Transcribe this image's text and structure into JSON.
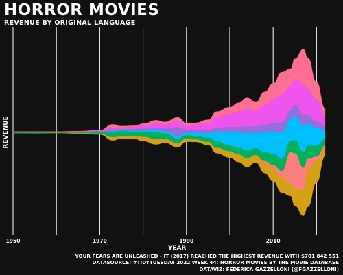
{
  "header": {
    "title": "HORROR MOVIES",
    "subtitle": "REVENUE BY ORIGINAL LANGUAGE"
  },
  "caption": {
    "line1": "YOUR FEARS ARE UNLEASHED - IT (2017) REACHED THE HIGHEST REVENUE WITH $701 842 551",
    "line2": "DATASOURCE: #TIDYTUESDAY 2022 WEEK 44: HORROR MOVIES BY THE MOVIE DATABASE",
    "line3": "DATAVIZ: FEDERICA GAZZELLONI (@FGAZZELLONI)"
  },
  "colors": {
    "background": "#111111",
    "grid": "#ffffff",
    "text": "#ffffff"
  },
  "chart_data": {
    "type": "area",
    "style": "streamgraph",
    "xlabel": "YEAR",
    "ylabel": "REVENUE",
    "xlim": [
      1950,
      2022
    ],
    "x_ticks": [
      1950,
      1970,
      1990,
      2010
    ],
    "x_tick_labels": [
      "1950",
      "1970",
      "1990",
      "2010"
    ],
    "gridlines_x": [
      1950,
      1960,
      1970,
      1980,
      1990,
      2000,
      2010,
      2020
    ],
    "legend": "none",
    "x": [
      1950,
      1955,
      1960,
      1965,
      1970,
      1973,
      1975,
      1978,
      1980,
      1983,
      1985,
      1988,
      1990,
      1992,
      1995,
      1997,
      2000,
      2002,
      2004,
      2006,
      2008,
      2010,
      2012,
      2014,
      2015,
      2017,
      2018,
      2020,
      2022
    ],
    "series": [
      {
        "color": "#d4a017",
        "values": [
          0.1,
          0.1,
          0.2,
          0.3,
          0.5,
          1.5,
          1.0,
          1.5,
          2.0,
          2.5,
          1.8,
          2.0,
          1.5,
          1.2,
          1.5,
          2.5,
          3.0,
          3.5,
          4.0,
          3.5,
          5.0,
          6.0,
          7.0,
          6.0,
          8.0,
          12.0,
          18.0,
          10.0,
          4.0
        ]
      },
      {
        "color": "#ff7f7f",
        "values": [
          0,
          0,
          0,
          0,
          0,
          0,
          0,
          0,
          0,
          0,
          0,
          0,
          0,
          0,
          0,
          0,
          0,
          0,
          0,
          0,
          0.5,
          1.5,
          3.0,
          14.0,
          16.0,
          10.0,
          4.0,
          2.0,
          1.0
        ]
      },
      {
        "color": "#00b159",
        "values": [
          0.4,
          0.5,
          0.3,
          0.4,
          0.6,
          2.0,
          2.5,
          1.8,
          2.0,
          3.0,
          2.5,
          2.0,
          1.5,
          1.5,
          2.0,
          3.0,
          2.5,
          3.0,
          3.5,
          3.0,
          4.0,
          5.0,
          5.5,
          5.0,
          6.0,
          7.0,
          6.0,
          5.0,
          3.0
        ]
      },
      {
        "color": "#00bfff",
        "values": [
          0.1,
          0.1,
          0.1,
          0.2,
          0.3,
          0.8,
          0.5,
          0.6,
          0.8,
          1.0,
          1.0,
          1.2,
          1.0,
          1.5,
          2.0,
          4.0,
          6.0,
          7.0,
          8.0,
          7.0,
          9.0,
          10.0,
          12.0,
          10.0,
          11.0,
          12.0,
          10.0,
          8.0,
          4.0
        ]
      },
      {
        "color": "#9370db",
        "values": [
          0,
          0,
          0,
          0,
          0.2,
          0.5,
          0.4,
          0.6,
          0.8,
          1.0,
          1.2,
          4.0,
          1.5,
          1.0,
          1.5,
          2.0,
          2.5,
          2.5,
          3.0,
          3.0,
          3.5,
          4.0,
          4.5,
          4.0,
          5.0,
          5.0,
          4.0,
          3.0,
          2.0
        ]
      },
      {
        "color": "#ee55ee",
        "values": [
          0.1,
          0.1,
          0.1,
          0.2,
          0.3,
          1.0,
          0.8,
          1.0,
          1.5,
          2.5,
          2.0,
          3.0,
          2.0,
          2.5,
          3.0,
          5.0,
          6.0,
          7.0,
          8.0,
          7.0,
          9.0,
          11.0,
          13.0,
          11.0,
          12.0,
          14.0,
          12.0,
          10.0,
          5.0
        ]
      },
      {
        "color": "#ff6f91",
        "values": [
          0,
          0,
          0,
          0,
          0.1,
          1.5,
          0.5,
          0.5,
          0.8,
          1.0,
          1.0,
          1.5,
          1.0,
          1.0,
          1.5,
          2.5,
          3.0,
          4.0,
          5.0,
          4.0,
          6.0,
          7.0,
          10.0,
          8.0,
          9.0,
          16.0,
          14.0,
          8.0,
          3.0
        ]
      }
    ]
  }
}
